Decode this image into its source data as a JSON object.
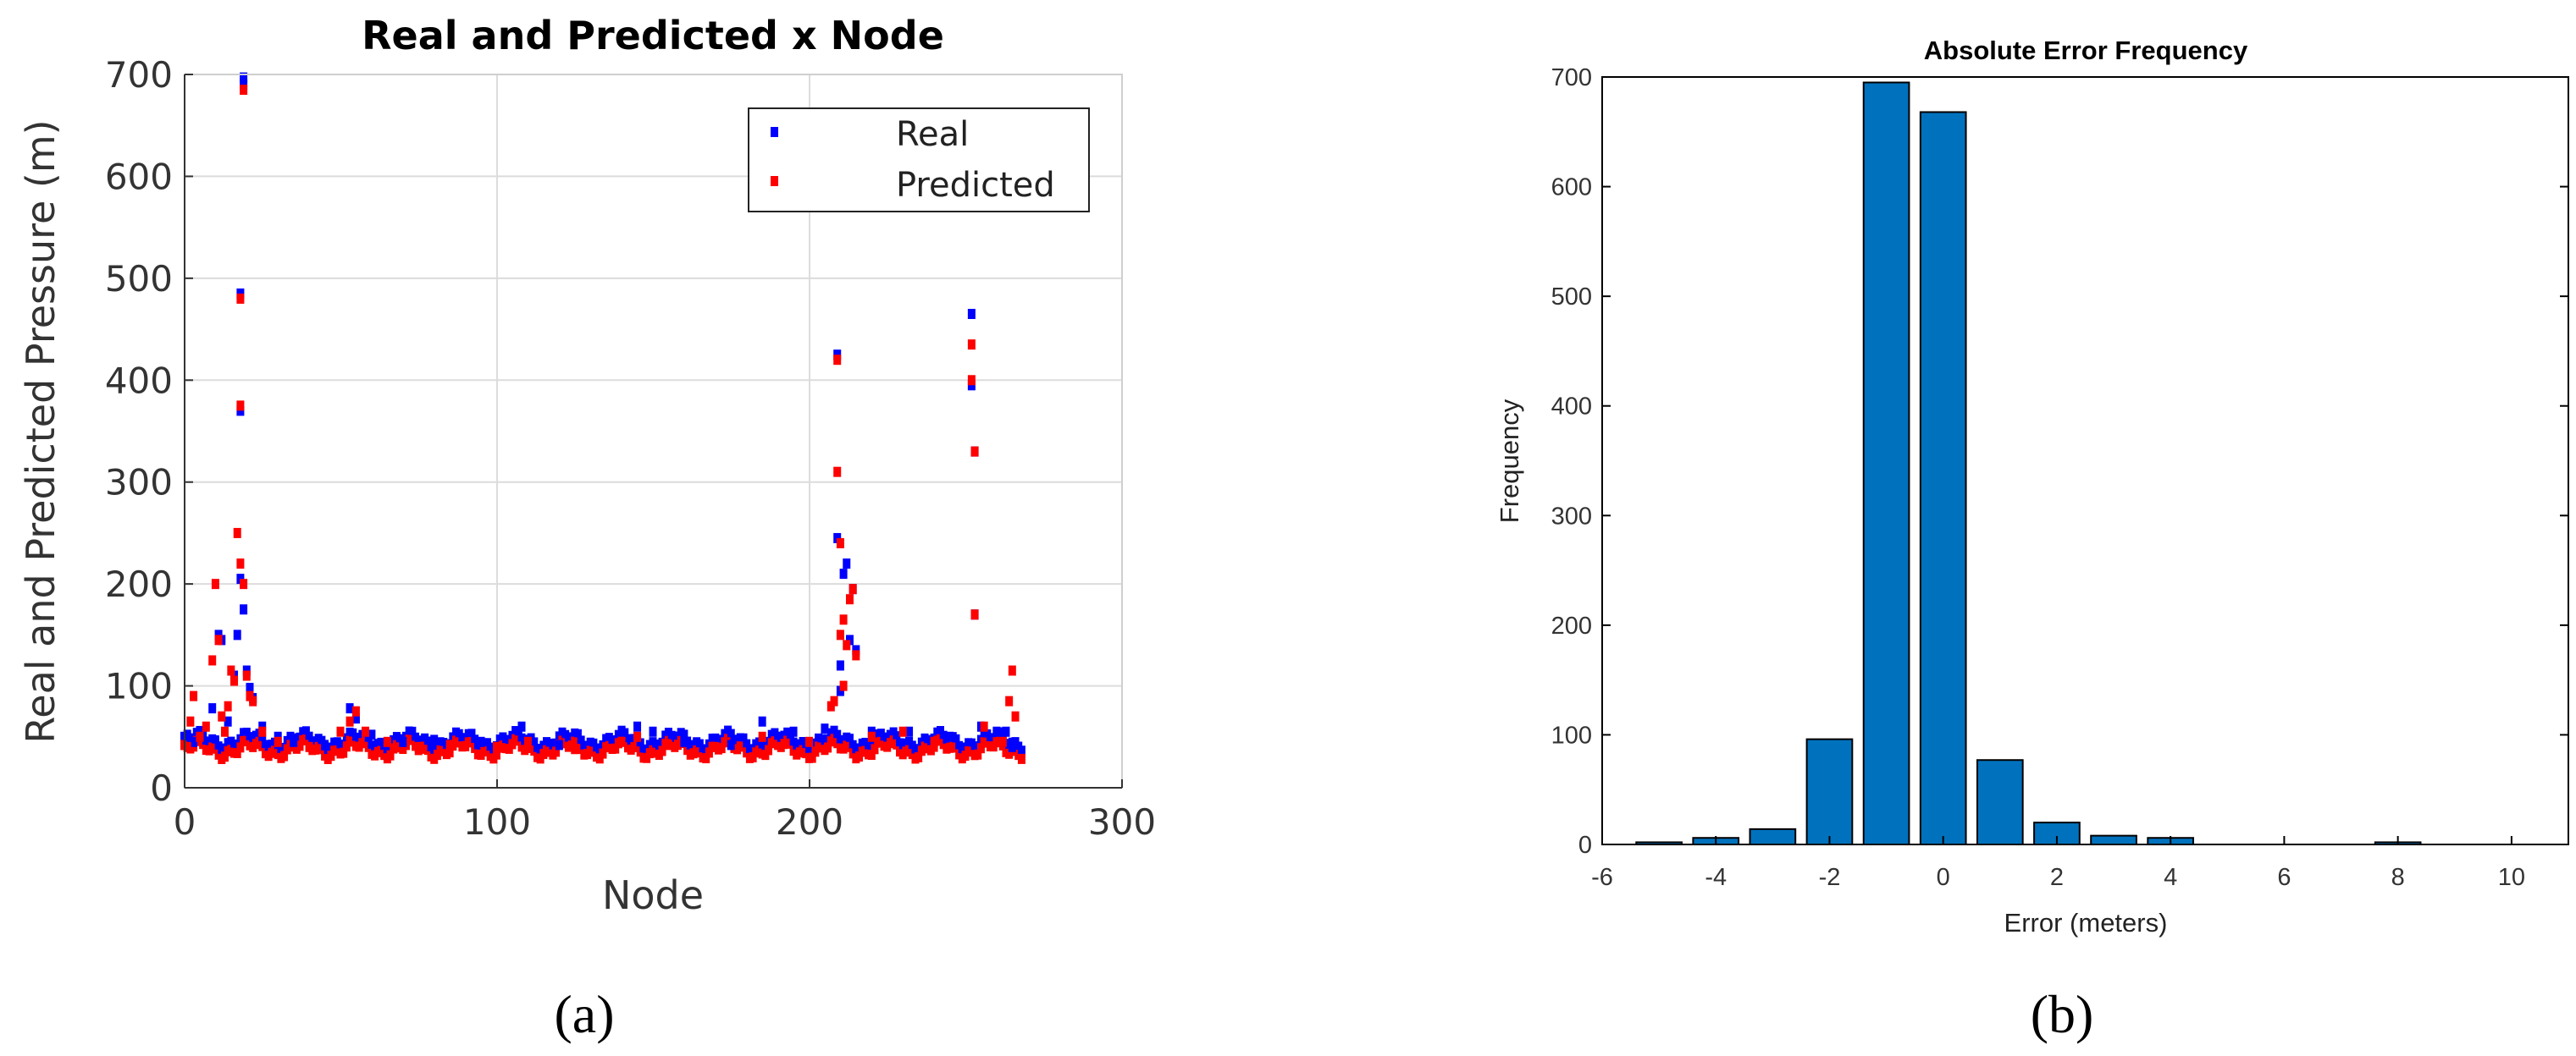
{
  "chart_data": [
    {
      "type": "scatter",
      "title": "Real and Predicted x Node",
      "xlabel": "Node",
      "ylabel": "Real and Predicted Pressure (m)",
      "xlim": [
        0,
        300
      ],
      "ylim": [
        0,
        700
      ],
      "xticks": [
        "0",
        "100",
        "200",
        "300"
      ],
      "yticks": [
        "0",
        "100",
        "200",
        "300",
        "400",
        "500",
        "600",
        "700"
      ],
      "grid": true,
      "legend_position": "top-right",
      "colors": {
        "Real": "#0000ff",
        "Predicted": "#ff0000"
      },
      "series": [
        {
          "name": "Real",
          "points": [
            [
              1,
              52
            ],
            [
              3,
              45
            ],
            [
              6,
              55
            ],
            [
              9,
              78
            ],
            [
              11,
              150
            ],
            [
              12,
              145
            ],
            [
              14,
              65
            ],
            [
              16,
              110
            ],
            [
              17,
              150
            ],
            [
              18,
              205
            ],
            [
              18,
              485
            ],
            [
              18,
              370
            ],
            [
              19,
              175
            ],
            [
              19,
              697
            ],
            [
              19,
              690
            ],
            [
              20,
              115
            ],
            [
              21,
              98
            ],
            [
              22,
              88
            ],
            [
              25,
              60
            ],
            [
              30,
              50
            ],
            [
              35,
              45
            ],
            [
              45,
              42
            ],
            [
              53,
              78
            ],
            [
              55,
              68
            ],
            [
              60,
              52
            ],
            [
              70,
              45
            ],
            [
              80,
              47
            ],
            [
              95,
              45
            ],
            [
              108,
              60
            ],
            [
              120,
              42
            ],
            [
              140,
              55
            ],
            [
              145,
              60
            ],
            [
              150,
              55
            ],
            [
              160,
              45
            ],
            [
              175,
              42
            ],
            [
              185,
              65
            ],
            [
              195,
              55
            ],
            [
              205,
              58
            ],
            [
              209,
              245
            ],
            [
              209,
              425
            ],
            [
              210,
              95
            ],
            [
              210,
              120
            ],
            [
              211,
              210
            ],
            [
              212,
              220
            ],
            [
              213,
              145
            ],
            [
              214,
              195
            ],
            [
              215,
              135
            ],
            [
              220,
              55
            ],
            [
              232,
              55
            ],
            [
              245,
              50
            ],
            [
              252,
              395
            ],
            [
              252,
              465
            ],
            [
              253,
              170
            ],
            [
              253,
              330
            ],
            [
              255,
              60
            ],
            [
              260,
              55
            ],
            [
              263,
              55
            ],
            [
              265,
              40
            ]
          ]
        },
        {
          "name": "Predicted",
          "points": [
            [
              1,
              40
            ],
            [
              2,
              65
            ],
            [
              3,
              90
            ],
            [
              5,
              50
            ],
            [
              7,
              60
            ],
            [
              9,
              125
            ],
            [
              10,
              200
            ],
            [
              11,
              145
            ],
            [
              12,
              70
            ],
            [
              13,
              55
            ],
            [
              14,
              80
            ],
            [
              15,
              115
            ],
            [
              16,
              105
            ],
            [
              17,
              250
            ],
            [
              18,
              220
            ],
            [
              18,
              480
            ],
            [
              18,
              375
            ],
            [
              19,
              685
            ],
            [
              19,
              200
            ],
            [
              20,
              110
            ],
            [
              21,
              90
            ],
            [
              22,
              85
            ],
            [
              25,
              55
            ],
            [
              30,
              45
            ],
            [
              40,
              40
            ],
            [
              50,
              55
            ],
            [
              53,
              65
            ],
            [
              55,
              75
            ],
            [
              58,
              55
            ],
            [
              65,
              45
            ],
            [
              75,
              40
            ],
            [
              85,
              42
            ],
            [
              100,
              40
            ],
            [
              110,
              45
            ],
            [
              125,
              38
            ],
            [
              140,
              45
            ],
            [
              145,
              50
            ],
            [
              155,
              42
            ],
            [
              170,
              40
            ],
            [
              185,
              50
            ],
            [
              200,
              45
            ],
            [
              207,
              80
            ],
            [
              208,
              85
            ],
            [
              209,
              310
            ],
            [
              209,
              420
            ],
            [
              210,
              240
            ],
            [
              210,
              150
            ],
            [
              211,
              165
            ],
            [
              211,
              100
            ],
            [
              212,
              140
            ],
            [
              213,
              185
            ],
            [
              214,
              195
            ],
            [
              215,
              130
            ],
            [
              220,
              50
            ],
            [
              230,
              55
            ],
            [
              240,
              45
            ],
            [
              252,
              400
            ],
            [
              252,
              435
            ],
            [
              253,
              330
            ],
            [
              253,
              170
            ],
            [
              256,
              60
            ],
            [
              262,
              45
            ],
            [
              264,
              85
            ],
            [
              265,
              115
            ],
            [
              266,
              70
            ]
          ]
        }
      ]
    },
    {
      "type": "bar",
      "title": "Absolute Error Frequency",
      "xlabel": "Error (meters)",
      "ylabel": "Frequency",
      "xlim": [
        -6,
        11
      ],
      "ylim": [
        0,
        700
      ],
      "xticks": [
        "-6",
        "-4",
        "-2",
        "0",
        "2",
        "4",
        "6",
        "8",
        "10"
      ],
      "yticks": [
        "0",
        "100",
        "200",
        "300",
        "400",
        "500",
        "600",
        "700"
      ],
      "bar_color": "#0072bd",
      "bar_width": 0.8,
      "x": [
        -5,
        -4,
        -3,
        -2,
        -1,
        0,
        1,
        2,
        3,
        4,
        5,
        6,
        7,
        8,
        9
      ],
      "values": [
        2,
        6,
        14,
        96,
        695,
        668,
        77,
        20,
        8,
        6,
        0,
        0,
        0,
        2,
        0
      ]
    }
  ],
  "captions": {
    "a": "(a)",
    "b": "(b)"
  }
}
